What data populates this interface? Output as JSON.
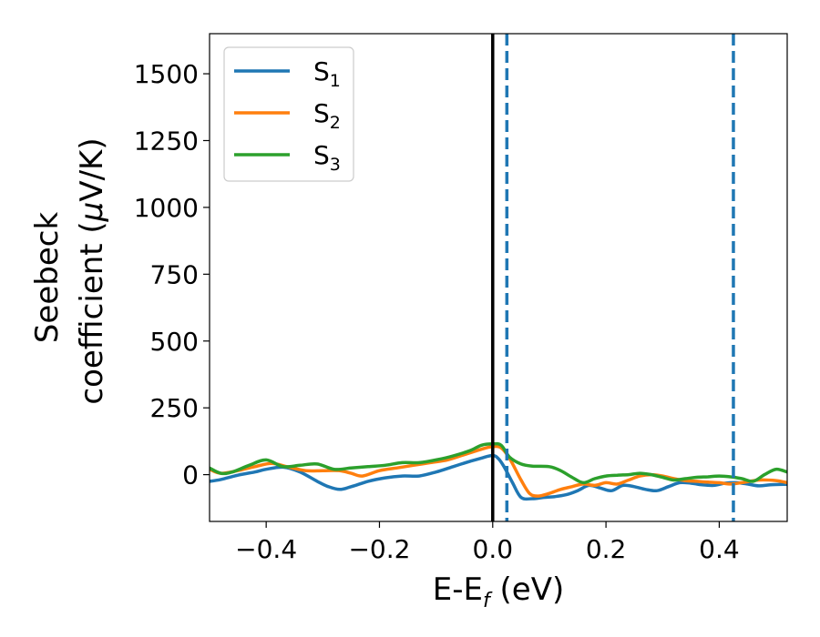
{
  "chart_data": {
    "type": "line",
    "xlabel": "E-E",
    "xlabel_sub": "f",
    "xlabel_unit": " (eV)",
    "ylabel_line1": "Seebeck",
    "ylabel_line2": "coefficient  (",
    "ylabel_mu": "μ",
    "ylabel_unit": "V/K)",
    "xlim": [
      -0.5,
      0.52
    ],
    "ylim": [
      -175,
      1650
    ],
    "xticks": [
      -0.4,
      -0.2,
      0.0,
      0.2,
      0.4
    ],
    "xtick_labels": [
      "−0.4",
      "−0.2",
      "0.0",
      "0.2",
      "0.4"
    ],
    "yticks": [
      0,
      250,
      500,
      750,
      1000,
      1250,
      1500
    ],
    "ytick_labels": [
      "0",
      "250",
      "500",
      "750",
      "1000",
      "1250",
      "1500"
    ],
    "grid": false,
    "legend_position": "top-left",
    "vlines": [
      {
        "x": 0.0,
        "color": "#000000",
        "style": "solid"
      },
      {
        "x": 0.025,
        "color": "#1f77b4",
        "style": "dashed"
      },
      {
        "x": 0.425,
        "color": "#1f77b4",
        "style": "dashed"
      }
    ],
    "series": [
      {
        "name": "S",
        "sub": "1",
        "color": "#1f77b4",
        "x": [
          -0.5,
          -0.48,
          -0.45,
          -0.42,
          -0.4,
          -0.37,
          -0.34,
          -0.31,
          -0.29,
          -0.27,
          -0.25,
          -0.22,
          -0.19,
          -0.16,
          -0.13,
          -0.1,
          -0.07,
          -0.04,
          -0.02,
          0.0,
          0.01,
          0.02,
          0.035,
          0.05,
          0.07,
          0.09,
          0.11,
          0.13,
          0.15,
          0.17,
          0.19,
          0.21,
          0.23,
          0.25,
          0.27,
          0.29,
          0.31,
          0.33,
          0.35,
          0.37,
          0.39,
          0.41,
          0.43,
          0.45,
          0.47,
          0.49,
          0.52
        ],
        "y": [
          -25,
          -18,
          -2,
          10,
          20,
          28,
          10,
          -25,
          -45,
          -55,
          -45,
          -25,
          -12,
          -5,
          -5,
          10,
          30,
          50,
          62,
          72,
          60,
          30,
          -30,
          -85,
          -90,
          -85,
          -82,
          -75,
          -60,
          -40,
          -50,
          -60,
          -40,
          -45,
          -55,
          -60,
          -45,
          -30,
          -32,
          -38,
          -40,
          -32,
          -30,
          -35,
          -42,
          -38,
          -36
        ]
      },
      {
        "name": "S",
        "sub": "2",
        "color": "#ff7f0e",
        "x": [
          -0.5,
          -0.48,
          -0.45,
          -0.42,
          -0.39,
          -0.36,
          -0.33,
          -0.3,
          -0.27,
          -0.25,
          -0.23,
          -0.2,
          -0.17,
          -0.14,
          -0.11,
          -0.08,
          -0.05,
          -0.02,
          0.0,
          0.015,
          0.03,
          0.05,
          0.065,
          0.08,
          0.1,
          0.12,
          0.14,
          0.16,
          0.18,
          0.2,
          0.22,
          0.24,
          0.26,
          0.28,
          0.3,
          0.32,
          0.34,
          0.36,
          0.38,
          0.4,
          0.42,
          0.44,
          0.47,
          0.5,
          0.52
        ],
        "y": [
          20,
          5,
          15,
          30,
          42,
          28,
          15,
          15,
          15,
          5,
          -5,
          15,
          25,
          35,
          45,
          55,
          75,
          95,
          105,
          100,
          60,
          -20,
          -70,
          -80,
          -70,
          -55,
          -45,
          -35,
          -40,
          -30,
          -35,
          -20,
          -5,
          0,
          -5,
          -15,
          -22,
          -25,
          -28,
          -30,
          -35,
          -30,
          -20,
          -22,
          -30
        ]
      },
      {
        "name": "S",
        "sub": "3",
        "color": "#2ca02c",
        "x": [
          -0.5,
          -0.48,
          -0.46,
          -0.43,
          -0.4,
          -0.37,
          -0.34,
          -0.31,
          -0.28,
          -0.25,
          -0.22,
          -0.19,
          -0.16,
          -0.13,
          -0.1,
          -0.07,
          -0.04,
          -0.02,
          0.0,
          0.015,
          0.03,
          0.05,
          0.07,
          0.1,
          0.12,
          0.14,
          0.16,
          0.18,
          0.2,
          0.22,
          0.24,
          0.26,
          0.28,
          0.3,
          0.32,
          0.34,
          0.36,
          0.38,
          0.4,
          0.42,
          0.44,
          0.46,
          0.48,
          0.5,
          0.52
        ],
        "y": [
          25,
          5,
          10,
          35,
          55,
          30,
          35,
          40,
          20,
          25,
          30,
          35,
          45,
          45,
          55,
          70,
          90,
          110,
          115,
          110,
          65,
          40,
          32,
          30,
          15,
          -10,
          -30,
          -15,
          -5,
          -2,
          0,
          5,
          0,
          -10,
          -20,
          -15,
          -10,
          -8,
          -5,
          -8,
          -15,
          -25,
          0,
          20,
          10
        ]
      }
    ]
  }
}
